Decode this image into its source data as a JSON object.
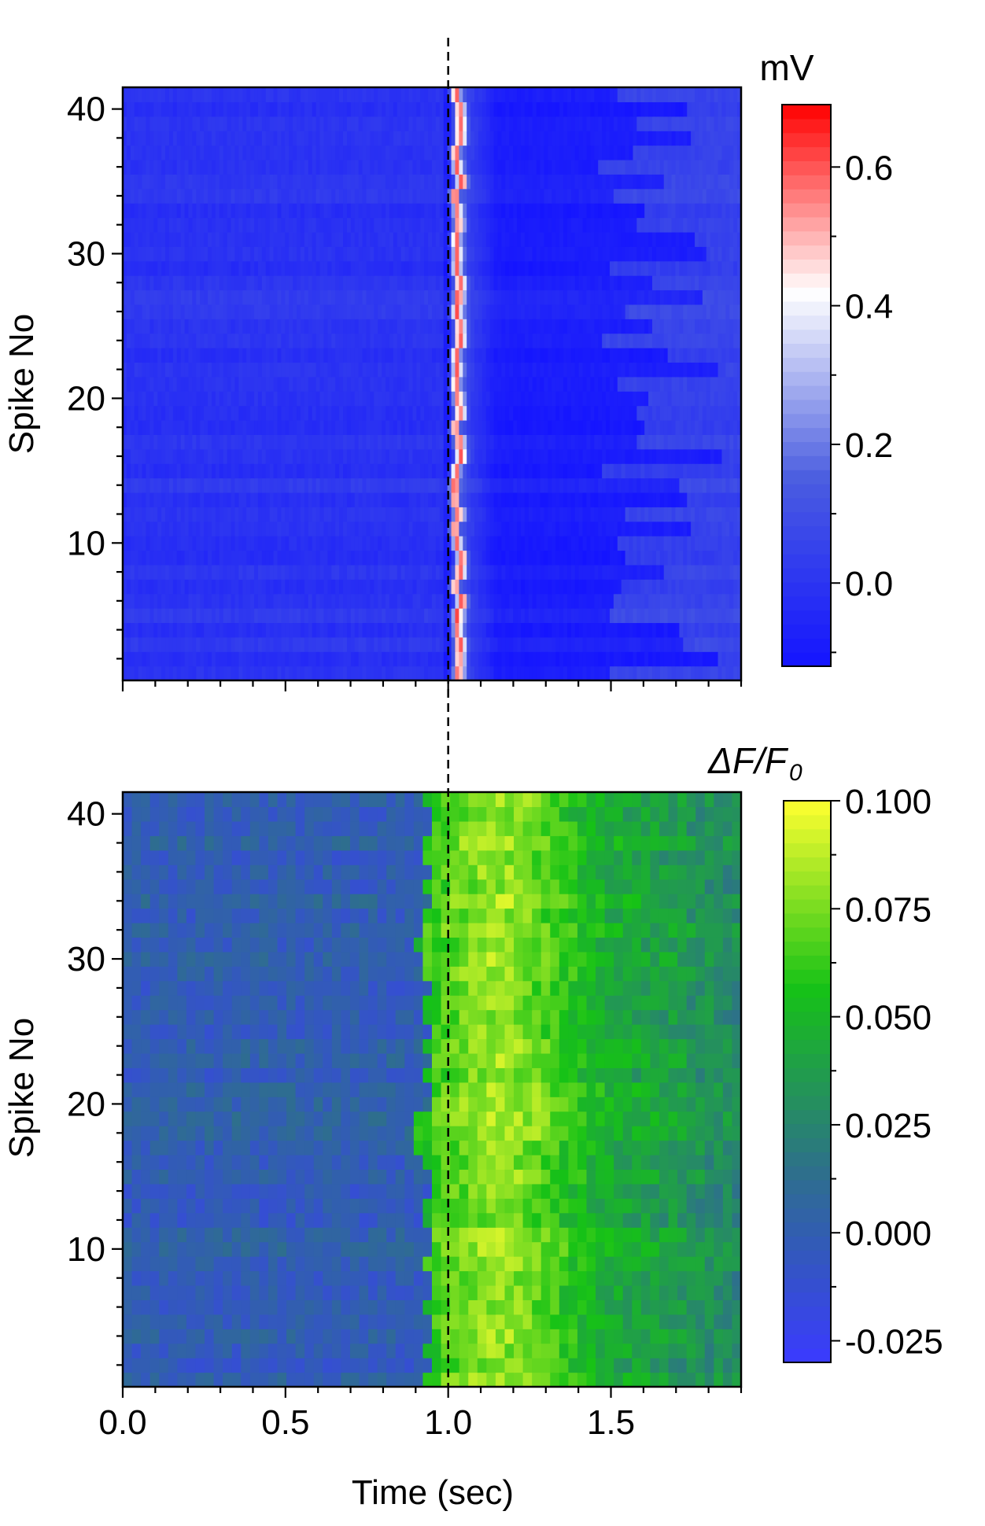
{
  "chart_data": [
    {
      "type": "heatmap",
      "panel": "top",
      "title": "",
      "xlabel": "",
      "ylabel": "Spike No",
      "xlim": [
        0.0,
        1.9
      ],
      "ylim": [
        0.5,
        41.5
      ],
      "yticks": [
        10,
        20,
        30,
        40
      ],
      "ytick_labels": [
        "10",
        "20",
        "30",
        "40"
      ],
      "event_time": 1.0,
      "colorbar": {
        "title": "mV",
        "range": [
          -0.12,
          0.69
        ],
        "ticks": [
          0.0,
          0.2,
          0.4,
          0.6
        ],
        "tick_labels": [
          "0.0",
          "0.2",
          "0.4",
          "0.6"
        ],
        "colors": [
          "#1414ff",
          "#4a5de0",
          "#ffffff",
          "#ff0000"
        ]
      },
      "rows": 41,
      "profile": {
        "baseline_mV": 0.0,
        "peak_time": 1.03,
        "peak_mV": 0.6,
        "post_min_mV": -0.08,
        "late_recovery_mV": 0.1
      }
    },
    {
      "type": "heatmap",
      "panel": "bottom",
      "title": "",
      "xlabel": "Time (sec)",
      "ylabel": "Spike No",
      "xlim": [
        0.0,
        1.9
      ],
      "ylim": [
        0.5,
        41.5
      ],
      "xticks": [
        0.0,
        0.5,
        1.0,
        1.5
      ],
      "xtick_labels": [
        "0.0",
        "0.5",
        "1.0",
        "1.5"
      ],
      "yticks": [
        10,
        20,
        30,
        40
      ],
      "ytick_labels": [
        "10",
        "20",
        "30",
        "40"
      ],
      "event_time": 1.0,
      "colorbar": {
        "title_main": "ΔF/F",
        "title_sub": "0",
        "range": [
          -0.03,
          0.1
        ],
        "ticks": [
          -0.025,
          0.0,
          0.025,
          0.05,
          0.075,
          0.1
        ],
        "tick_labels": [
          "-0.025",
          "0.000",
          "0.025",
          "0.050",
          "0.075",
          "0.100"
        ],
        "colors": [
          "#3a3aff",
          "#2e6e8e",
          "#16c216",
          "#ffff30"
        ]
      },
      "rows": 41,
      "profile": {
        "baseline": 0.0,
        "onset_time": 0.93,
        "peak_time": 1.15,
        "peak": 0.08,
        "late_level": 0.04
      }
    }
  ]
}
